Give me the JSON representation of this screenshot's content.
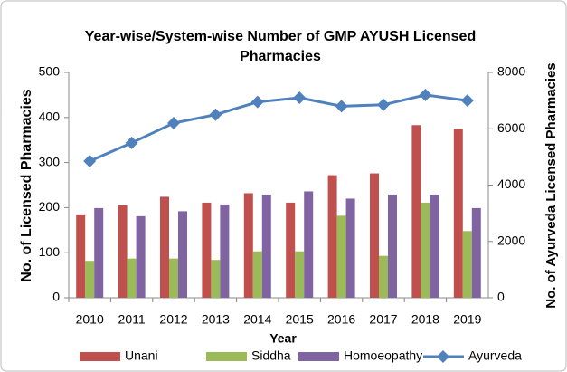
{
  "chart_data": {
    "type": "bar_line",
    "title": "Year-wise/System-wise Number of GMP AYUSH Licensed Pharmacies",
    "x_label": "Year",
    "y_label": "No. of  Licensed Pharmacies",
    "y2_label": "No. of Ayurveda Licensed Pharmacies",
    "categories": [
      "2010",
      "2011",
      "2012",
      "2013",
      "2014",
      "2015",
      "2016",
      "2017",
      "2018",
      "2019"
    ],
    "series": [
      {
        "name": "Unani",
        "color": "#c0504d",
        "type": "bar",
        "values": [
          185,
          205,
          224,
          211,
          232,
          211,
          272,
          276,
          383,
          375
        ]
      },
      {
        "name": "Siddha",
        "color": "#9bbb59",
        "type": "bar",
        "values": [
          82,
          87,
          87,
          84,
          103,
          103,
          182,
          93,
          211,
          148
        ]
      },
      {
        "name": "Homoeopathy",
        "color": "#8064a2",
        "type": "bar",
        "values": [
          199,
          181,
          192,
          207,
          229,
          236,
          220,
          229,
          229,
          199
        ]
      },
      {
        "name": "Ayurveda",
        "color": "#4f81bd",
        "type": "line",
        "axis": "y2",
        "values": [
          4850,
          5500,
          6200,
          6500,
          6950,
          7100,
          6800,
          6850,
          7200,
          7000
        ]
      }
    ],
    "ylim": [
      0,
      500
    ],
    "yticks": [
      0,
      100,
      200,
      300,
      400,
      500
    ],
    "y2lim": [
      0,
      8000
    ],
    "y2ticks": [
      0,
      2000,
      4000,
      6000,
      8000
    ],
    "grid": false,
    "legend": "bottom"
  }
}
